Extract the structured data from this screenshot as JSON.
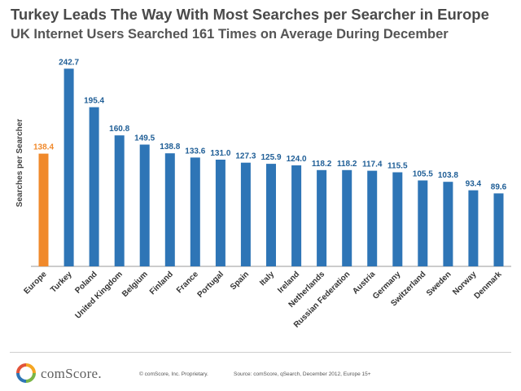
{
  "header": {
    "title": "Turkey Leads The Way With Most Searches per Searcher in Europe",
    "subtitle": "UK Internet Users Searched 161 Times on Average During December"
  },
  "chart_data": {
    "type": "bar",
    "ylabel": "Searches per Searcher",
    "xlabel": "",
    "ylim": [
      0,
      255
    ],
    "grid": false,
    "legend": "none",
    "categories": [
      "Europe",
      "Turkey",
      "Poland",
      "United Kingdom",
      "Belgium",
      "Finland",
      "France",
      "Portugal",
      "Spain",
      "Italy",
      "Ireland",
      "Netherlands",
      "Russian Federation",
      "Austria",
      "Germany",
      "Switzerland",
      "Sweden",
      "Norway",
      "Denmark"
    ],
    "values": [
      138.4,
      242.7,
      195.4,
      160.8,
      149.5,
      138.8,
      133.6,
      131.0,
      127.3,
      125.9,
      124.0,
      118.2,
      118.2,
      117.4,
      115.5,
      105.5,
      103.8,
      93.4,
      89.6
    ],
    "value_labels": [
      "138.4",
      "242.7",
      "195.4",
      "160.8",
      "149.5",
      "138.8",
      "133.6",
      "131.0",
      "127.3",
      "125.9",
      "124.0",
      "118.2",
      "118.2",
      "117.4",
      "115.5",
      "105.5",
      "103.8",
      "93.4",
      "89.6"
    ],
    "highlight_index": 0,
    "colors": {
      "bar": "#2e75b6",
      "highlight": "#f0892b",
      "label": "#1f5e96",
      "highlight_label": "#f0892b"
    }
  },
  "footer": {
    "brand": "comScore.",
    "copyright": "© comScore, Inc.    Proprietary.",
    "source": "Source: comScore, qSearch, December 2012, Europe 15+",
    "logo_icon": "comscore-logo-icon",
    "logo_colors": [
      "#f5a623",
      "#7ab648",
      "#2e75b6",
      "#e2543a"
    ]
  }
}
